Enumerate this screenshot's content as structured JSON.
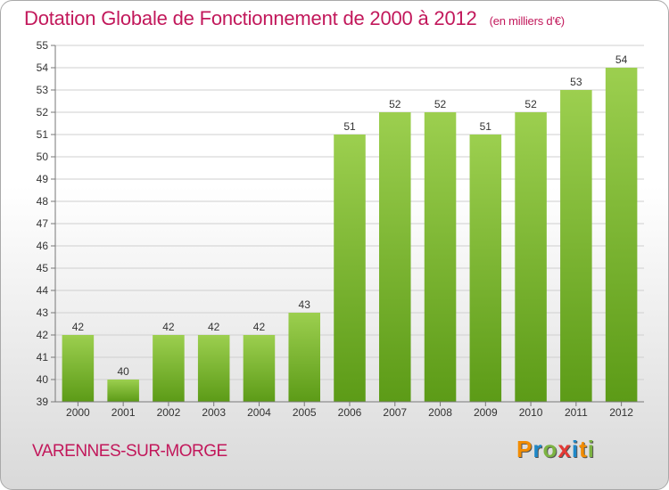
{
  "title": "Dotation Globale de Fonctionnement de 2000 à 2012",
  "unit_note": "(en milliers d'€)",
  "commune": "VARENNES-SUR-MORGE",
  "logo": {
    "letters": [
      "P",
      "r",
      "o",
      "x",
      "i",
      "t",
      "i"
    ],
    "colors": [
      "#f28c00",
      "#1e88c8",
      "#7cb342",
      "#e53935",
      "#1e88c8",
      "#f28c00",
      "#7cb342"
    ]
  },
  "chart_data": {
    "type": "bar",
    "title": "Dotation Globale de Fonctionnement de 2000 à 2012",
    "unit": "(en milliers d'€)",
    "categories": [
      "2000",
      "2001",
      "2002",
      "2003",
      "2004",
      "2005",
      "2006",
      "2007",
      "2008",
      "2009",
      "2010",
      "2011",
      "2012"
    ],
    "values": [
      42,
      40,
      42,
      42,
      42,
      43,
      51,
      52,
      52,
      51,
      52,
      53,
      54
    ],
    "ylim": [
      39,
      55
    ],
    "yticks": [
      39,
      40,
      41,
      42,
      43,
      44,
      45,
      46,
      47,
      48,
      49,
      50,
      51,
      52,
      53,
      54,
      55
    ],
    "grid": true,
    "bar_color_top": "#9ccf4f",
    "bar_color_bottom": "#5c9b17",
    "xlabel": "",
    "ylabel": ""
  }
}
